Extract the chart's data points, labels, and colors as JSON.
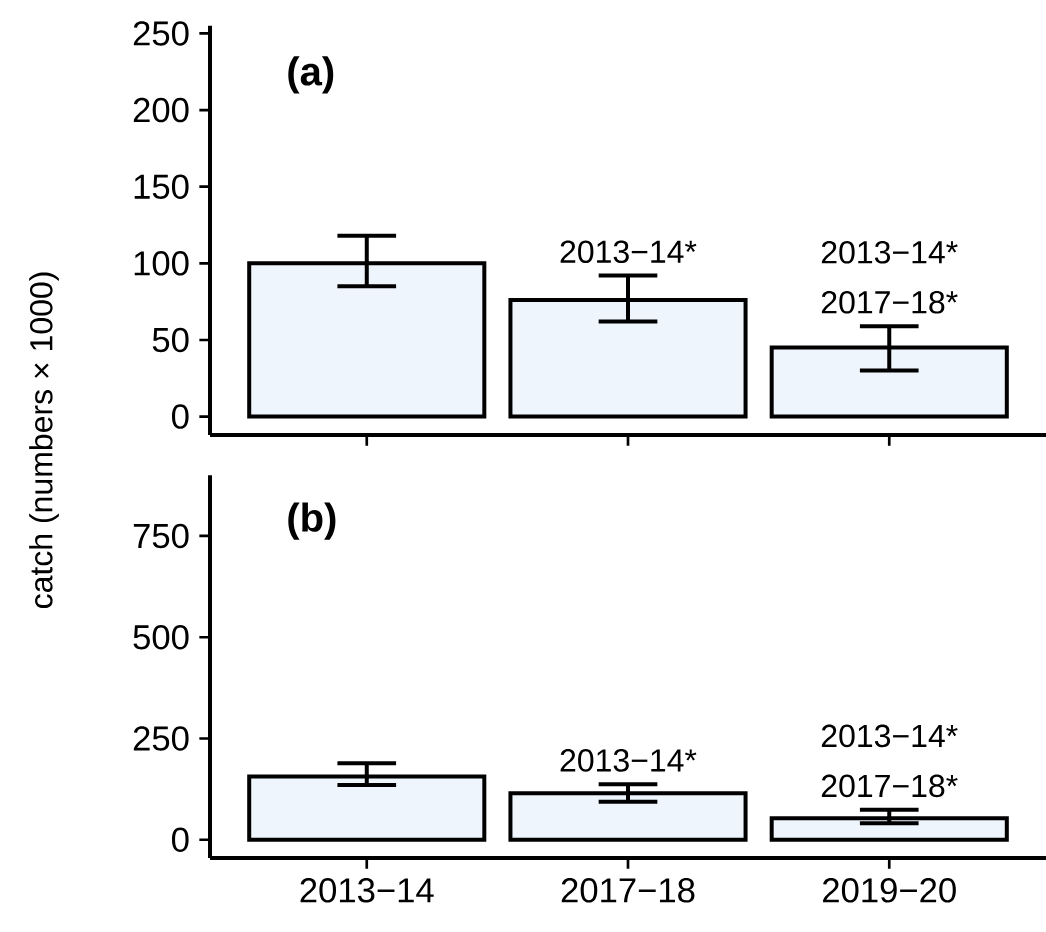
{
  "chart_data": [
    {
      "type": "bar",
      "ylabel": "catch (numbers × 1000)",
      "categories": [
        null,
        null,
        null
      ],
      "values": [
        100,
        76,
        45
      ],
      "errors": [
        [
          85,
          118
        ],
        [
          62,
          92
        ],
        [
          30,
          59
        ]
      ],
      "color": "#eef5fd",
      "ylim": [
        -12,
        255
      ],
      "yticks": [
        0,
        50,
        100,
        150,
        200,
        250
      ],
      "tick_labels": "y",
      "annotations": [
        "(a)",
        "2013−14*",
        "2013−14*",
        "2017−18*"
      ]
    },
    {
      "type": "bar",
      "categories": [
        "2013−14",
        "2017−18",
        "2019−20"
      ],
      "values": [
        156,
        115,
        53
      ],
      "errors": [
        [
          135,
          189
        ],
        [
          94,
          137
        ],
        [
          41,
          74
        ]
      ],
      "color": "#eef5fd",
      "ylim": [
        -45,
        900
      ],
      "yticks": [
        0,
        250,
        500,
        750
      ],
      "annotations": [
        "(b)",
        "2013−14*",
        "2013−14*",
        "2017−18*"
      ]
    }
  ]
}
